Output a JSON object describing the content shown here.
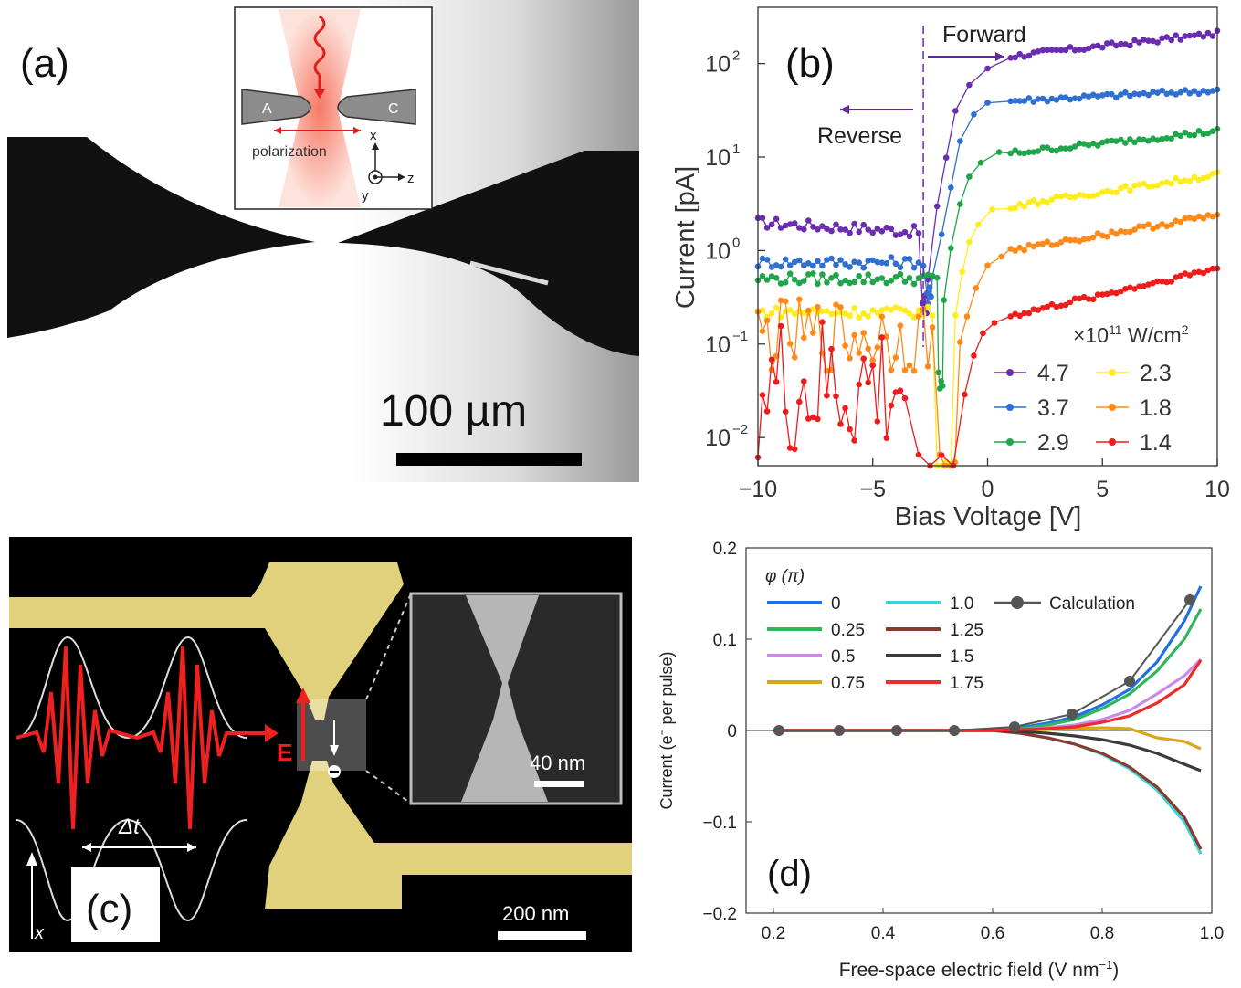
{
  "panel_a": {
    "label": "(a)",
    "scale_text": "100 µm",
    "inset": {
      "tip_left": "A",
      "tip_right": "C",
      "polarization": "polarization",
      "axis_x": "x",
      "axis_y": "y",
      "axis_z": "z"
    }
  },
  "panel_c": {
    "label": "(c)",
    "delta_t": "Δt",
    "field_label": "E",
    "x_axis": "x",
    "inset_scale": "40 nm",
    "scale": "200 nm"
  },
  "colors": {
    "purple": "#6a2db0",
    "blue": "#2f6fd0",
    "green": "#1fa64a",
    "yellow": "#ffec1e",
    "orange": "#ff8a1a",
    "red": "#ee1c1c",
    "gold": "#eddc83",
    "d_blue": "#1f6fe5",
    "d_green": "#2fb65a",
    "d_violet": "#c98ae8",
    "d_mustard": "#d9a61c",
    "d_cyan": "#3cd4d8",
    "d_brown": "#8a3a30",
    "d_dark": "#3a3a3a",
    "d_red": "#ee2a2a",
    "calc": "#555555"
  },
  "chart_data": [
    {
      "panel": "(b)",
      "type": "scatter",
      "xlabel": "Bias Voltage [V]",
      "ylabel": "Current [pA]",
      "xlim": [
        -10,
        10
      ],
      "ylim": [
        0.005,
        400
      ],
      "y_scale": "log",
      "xticks": [
        "−10",
        "−5",
        "0",
        "5",
        "10"
      ],
      "yticks": [
        "10",
        "10",
        "10",
        "10",
        "10"
      ],
      "ytick_exp": [
        "−2",
        "−1",
        "0",
        "1",
        "2"
      ],
      "legend_title": "×10",
      "legend_title_exp": "11",
      "legend_title_unit": " W/cm",
      "legend_title_unit_exp": "2",
      "legend_position": "bottom-right",
      "annotations": {
        "forward": "Forward",
        "reverse": "Reverse",
        "threshold_v": -2.8
      },
      "series": [
        {
          "name": "4.7",
          "color": "#6a2db0",
          "low": 2.0,
          "dropV": -2.9,
          "min": 0.25,
          "rise": [
            [
              -2.6,
              0.5
            ],
            [
              -2.2,
              3
            ],
            [
              -1.8,
              10
            ],
            [
              -1.4,
              30
            ],
            [
              -0.8,
              60
            ],
            [
              0,
              90
            ],
            [
              1,
              120
            ]
          ],
          "high": [
            120,
            210
          ]
        },
        {
          "name": "3.7",
          "color": "#2f6fd0",
          "low": 0.75,
          "dropV": -2.7,
          "min": 0.3,
          "rise": [
            [
              -2.4,
              0.5
            ],
            [
              -2.0,
              1.5
            ],
            [
              -1.6,
              5
            ],
            [
              -1.2,
              15
            ],
            [
              -0.6,
              30
            ],
            [
              0,
              38
            ],
            [
              1,
              40
            ]
          ],
          "high": [
            40,
            52
          ]
        },
        {
          "name": "2.9",
          "color": "#1fa64a",
          "low": 0.5,
          "dropV": -2.2,
          "min": 0.04,
          "rise": [
            [
              -1.9,
              0.3
            ],
            [
              -1.6,
              1
            ],
            [
              -1.2,
              3
            ],
            [
              -0.8,
              6
            ],
            [
              -0.3,
              9
            ],
            [
              0.5,
              11
            ],
            [
              1,
              11
            ]
          ],
          "high": [
            11,
            19
          ]
        },
        {
          "name": "2.3",
          "color": "#ffec1e",
          "low": 0.22,
          "dropV": -2.4,
          "min": 0.005,
          "rise": [
            [
              -1.4,
              0.2
            ],
            [
              -1.1,
              0.6
            ],
            [
              -0.8,
              1.2
            ],
            [
              -0.4,
              2
            ],
            [
              0.2,
              2.6
            ],
            [
              1,
              3
            ]
          ],
          "high": [
            3,
            6.5
          ]
        },
        {
          "name": "1.8",
          "color": "#ff8a1a",
          "low": 0.12,
          "dropV": -2.3,
          "min": 0.005,
          "rise": [
            [
              -1.2,
              0.1
            ],
            [
              -0.9,
              0.2
            ],
            [
              -0.5,
              0.4
            ],
            [
              0,
              0.7
            ],
            [
              0.6,
              0.9
            ],
            [
              1,
              1
            ]
          ],
          "high": [
            1,
            2.4
          ]
        },
        {
          "name": "1.4",
          "color": "#ee1c1c",
          "low": 0.03,
          "dropV": -3.5,
          "min": 0.005,
          "rise": [
            [
              -1.0,
              0.03
            ],
            [
              -0.6,
              0.08
            ],
            [
              -0.2,
              0.13
            ],
            [
              0.3,
              0.17
            ],
            [
              1,
              0.2
            ]
          ],
          "high": [
            0.2,
            0.65
          ]
        }
      ]
    },
    {
      "panel": "(d)",
      "type": "line",
      "xlabel": "Free-space electric field (V nm",
      "xlabel_sup": "−1",
      "xlabel_end": ")",
      "ylabel": "Current (e",
      "ylabel_sup": "−",
      "ylabel_end": " per pulse)",
      "xlim": [
        0.15,
        1.0
      ],
      "ylim": [
        -0.2,
        0.2
      ],
      "xticks": [
        "0.2",
        "0.4",
        "0.6",
        "0.8",
        "1.0"
      ],
      "xtick_values": [
        0.2,
        0.4,
        0.6,
        0.8,
        1.0
      ],
      "yticks": [
        "−0.2",
        "−0.1",
        "0",
        "0.1",
        "0.2"
      ],
      "ytick_values": [
        -0.2,
        -0.1,
        0,
        0.1,
        0.2
      ],
      "legend_title": "φ (π)",
      "legend_position": "top-left",
      "series": [
        {
          "name": "0",
          "color": "#1f6fe5",
          "x": [
            0.2,
            0.3,
            0.4,
            0.5,
            0.6,
            0.65,
            0.7,
            0.75,
            0.8,
            0.85,
            0.9,
            0.95,
            0.98
          ],
          "y": [
            0,
            0,
            0,
            0,
            0,
            0.003,
            0.008,
            0.015,
            0.028,
            0.045,
            0.075,
            0.12,
            0.158
          ]
        },
        {
          "name": "0.25",
          "color": "#2fb65a",
          "x": [
            0.2,
            0.3,
            0.4,
            0.5,
            0.6,
            0.65,
            0.7,
            0.75,
            0.8,
            0.85,
            0.9,
            0.95,
            0.98
          ],
          "y": [
            0,
            0,
            0,
            0,
            0,
            0.002,
            0.006,
            0.012,
            0.024,
            0.04,
            0.065,
            0.1,
            0.133
          ]
        },
        {
          "name": "0.5",
          "color": "#c98ae8",
          "x": [
            0.2,
            0.3,
            0.4,
            0.5,
            0.6,
            0.65,
            0.7,
            0.75,
            0.8,
            0.85,
            0.9,
            0.95,
            0.98
          ],
          "y": [
            0,
            0,
            0,
            0,
            0,
            0.001,
            0.003,
            0.006,
            0.012,
            0.022,
            0.04,
            0.06,
            0.078
          ]
        },
        {
          "name": "0.75",
          "color": "#d9a61c",
          "x": [
            0.2,
            0.3,
            0.4,
            0.5,
            0.6,
            0.65,
            0.7,
            0.75,
            0.8,
            0.85,
            0.9,
            0.95,
            0.98
          ],
          "y": [
            0,
            0,
            0,
            0,
            0,
            0,
            0.001,
            0.002,
            0.003,
            0.002,
            -0.008,
            -0.012,
            -0.02
          ]
        },
        {
          "name": "1.0",
          "color": "#3cd4d8",
          "x": [
            0.2,
            0.3,
            0.4,
            0.5,
            0.6,
            0.65,
            0.7,
            0.75,
            0.8,
            0.85,
            0.9,
            0.95,
            0.98
          ],
          "y": [
            0,
            0,
            0,
            0,
            0,
            -0.003,
            -0.008,
            -0.015,
            -0.026,
            -0.042,
            -0.065,
            -0.1,
            -0.135
          ]
        },
        {
          "name": "1.25",
          "color": "#8a3a30",
          "x": [
            0.2,
            0.3,
            0.4,
            0.5,
            0.6,
            0.65,
            0.7,
            0.75,
            0.8,
            0.85,
            0.9,
            0.95,
            0.98
          ],
          "y": [
            0,
            0,
            0,
            0,
            0,
            -0.003,
            -0.008,
            -0.015,
            -0.025,
            -0.04,
            -0.062,
            -0.095,
            -0.13
          ]
        },
        {
          "name": "1.5",
          "color": "#3a3a3a",
          "x": [
            0.2,
            0.3,
            0.4,
            0.5,
            0.6,
            0.65,
            0.7,
            0.75,
            0.8,
            0.85,
            0.9,
            0.95,
            0.98
          ],
          "y": [
            0,
            0,
            0,
            0,
            0,
            -0.001,
            -0.003,
            -0.006,
            -0.01,
            -0.016,
            -0.025,
            -0.037,
            -0.044
          ]
        },
        {
          "name": "1.75",
          "color": "#ee2a2a",
          "x": [
            0.2,
            0.3,
            0.4,
            0.5,
            0.6,
            0.65,
            0.7,
            0.75,
            0.8,
            0.85,
            0.9,
            0.95,
            0.98
          ],
          "y": [
            0,
            0,
            0,
            0,
            0,
            0.001,
            0.002,
            0.004,
            0.009,
            0.016,
            0.03,
            0.05,
            0.077
          ]
        },
        {
          "name": "Calculation",
          "color": "#555555",
          "marker": "circle",
          "x": [
            0.21,
            0.32,
            0.425,
            0.53,
            0.64,
            0.745,
            0.85,
            0.96
          ],
          "y": [
            0,
            0,
            0,
            0,
            0.004,
            0.018,
            0.054,
            0.143
          ]
        }
      ]
    }
  ]
}
